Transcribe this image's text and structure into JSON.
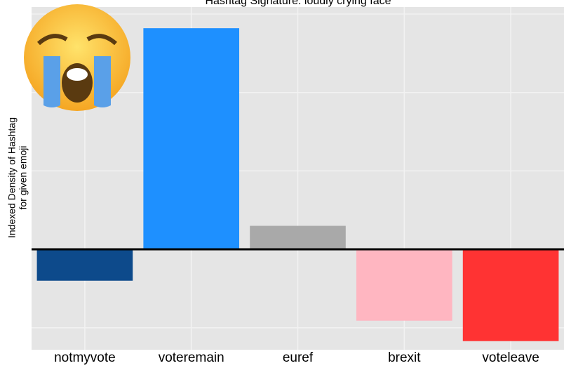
{
  "chart_data": {
    "type": "bar",
    "title": "Hashtag Signature: loudly crying face",
    "y_label": [
      "Indexed Density of Hashtag",
      "for given emoji"
    ],
    "categories": [
      "notmyvote",
      "voteremain",
      "euref",
      "brexit",
      "voteleave"
    ],
    "values": [
      -0.4,
      2.82,
      0.3,
      -0.91,
      -1.17
    ],
    "colors": [
      "#0d4a8b",
      "#1e90ff",
      "#a9a9a9",
      "#ffb6c1",
      "#ff3333"
    ],
    "ylim": [
      -1.28,
      3.09
    ],
    "yticks": [
      -1,
      0,
      1,
      2,
      3
    ],
    "grid": true
  }
}
